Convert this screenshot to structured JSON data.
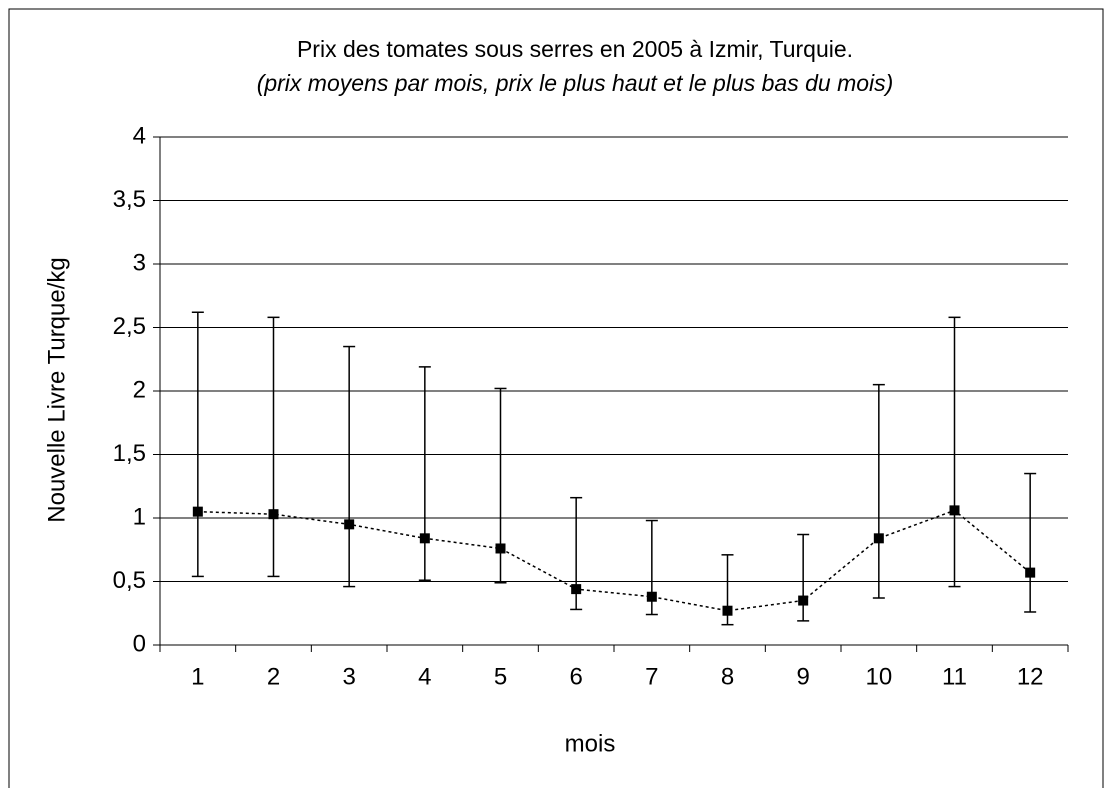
{
  "chart_data": {
    "type": "line",
    "title": "Prix des tomates sous serres en 2005 à Izmir, Turquie.",
    "subtitle": "(prix moyens par mois, prix le plus haut et le plus bas du mois)",
    "x_label": "mois",
    "y_label": "Nouvelle Livre Turque/kg",
    "categories": [
      "1",
      "2",
      "3",
      "4",
      "5",
      "6",
      "7",
      "8",
      "9",
      "10",
      "11",
      "12"
    ],
    "values": [
      1.05,
      1.03,
      0.95,
      0.84,
      0.76,
      0.44,
      0.38,
      0.27,
      0.35,
      0.84,
      1.06,
      0.57
    ],
    "high": [
      2.62,
      2.58,
      2.35,
      2.19,
      2.02,
      1.16,
      0.98,
      0.71,
      0.87,
      2.05,
      2.58,
      1.35
    ],
    "low": [
      0.54,
      0.54,
      0.46,
      0.51,
      0.49,
      0.28,
      0.24,
      0.16,
      0.19,
      0.37,
      0.46,
      0.26
    ],
    "color": "#000000",
    "ylim": [
      0,
      4
    ],
    "yticks": [
      0,
      {
        "value": 0.5,
        "label": "0,5"
      },
      1,
      {
        "value": 1.5,
        "label": "1,5"
      },
      2,
      {
        "value": 2.5,
        "label": "2,5"
      },
      3,
      {
        "value": 3.5,
        "label": "3,5"
      },
      4
    ],
    "grid": true
  }
}
